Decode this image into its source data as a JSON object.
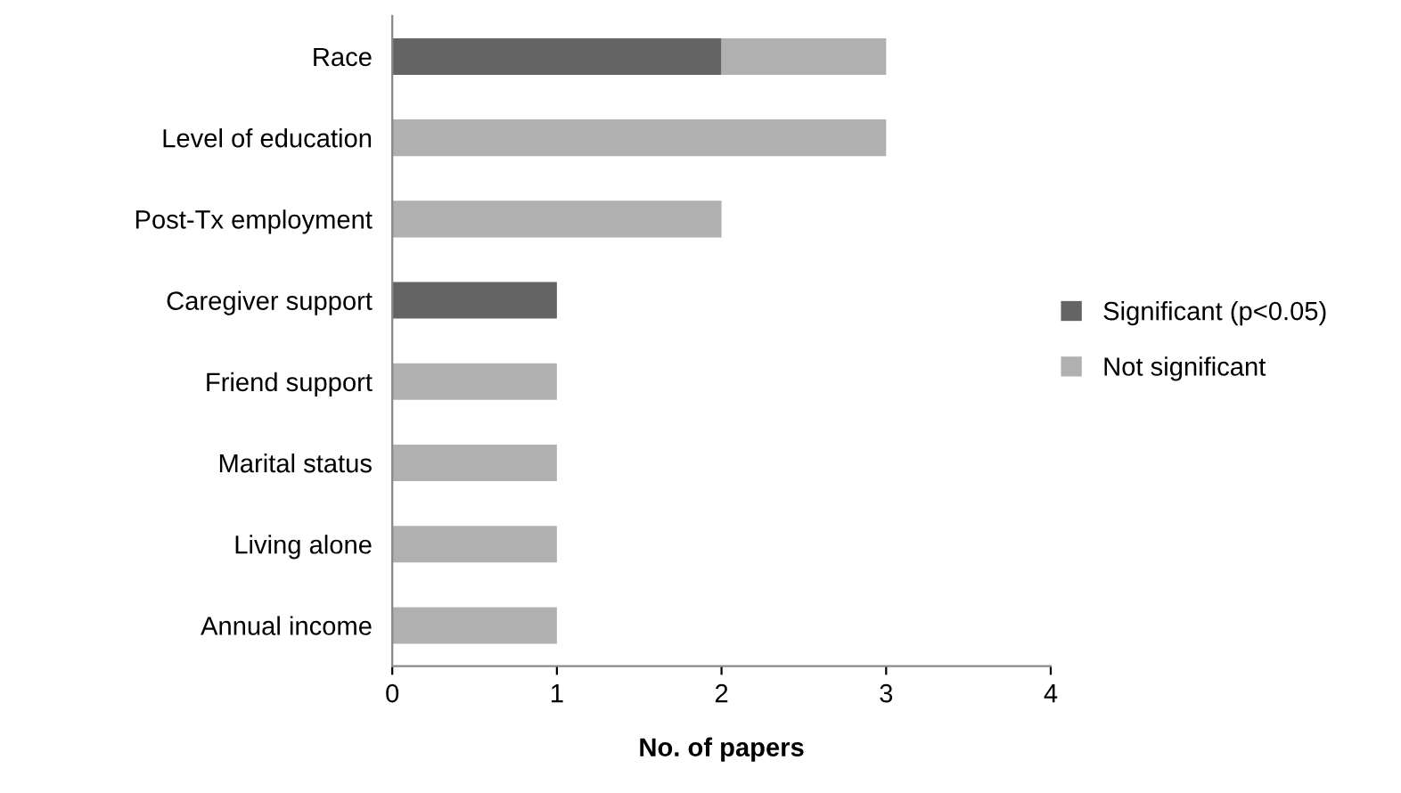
{
  "chart_data": {
    "type": "bar",
    "orientation": "horizontal",
    "stacked": true,
    "xlabel": "No. of papers",
    "categories": [
      "Race",
      "Level of education",
      "Post-Tx employment",
      "Caregiver support",
      "Friend support",
      "Marital status",
      "Living alone",
      "Annual income"
    ],
    "series": [
      {
        "name": "Significant (p<0.05)",
        "color": "#646464",
        "values": [
          2,
          0,
          0,
          1,
          0,
          0,
          0,
          0
        ]
      },
      {
        "name": "Not significant",
        "color": "#b0b0b0",
        "values": [
          1,
          3,
          2,
          0,
          1,
          1,
          1,
          1
        ]
      }
    ],
    "xlim": [
      0,
      4
    ],
    "xticks": [
      0,
      1,
      2,
      3,
      4
    ],
    "grid": false,
    "legend": "right"
  }
}
